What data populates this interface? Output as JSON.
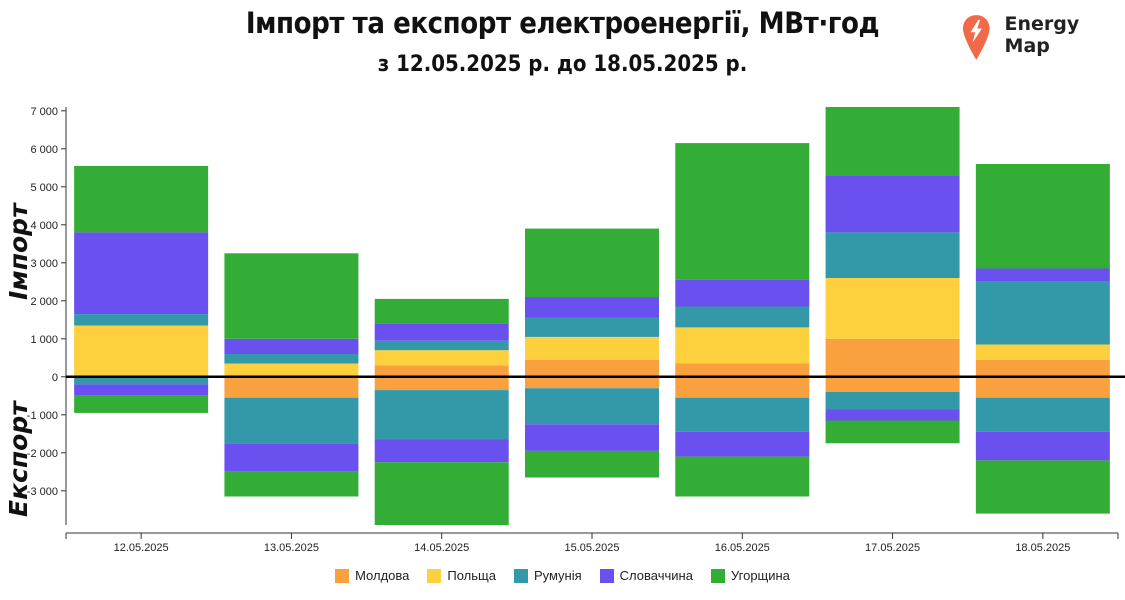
{
  "header": {
    "title": "Імпорт та експорт електроенергії, МВт·год",
    "subtitle": "з 12.05.2025 р. до 18.05.2025 р.",
    "brand_name": "Energy Map",
    "brand_icon": "location-bolt-icon"
  },
  "side_labels": {
    "import": "Імпорт",
    "export": "Експорт"
  },
  "chart_data": {
    "type": "bar",
    "stacked": true,
    "title": "Імпорт та експорт електроенергії, МВт·год",
    "subtitle": "з 12.05.2025 р. до 18.05.2025 р.",
    "categories": [
      "12.05.2025",
      "13.05.2025",
      "14.05.2025",
      "15.05.2025",
      "16.05.2025",
      "17.05.2025",
      "18.05.2025"
    ],
    "ylim": [
      -3900,
      7100
    ],
    "yticks": [
      7000,
      6000,
      5000,
      4000,
      3000,
      2000,
      1000,
      0,
      -1000,
      -2000,
      -3000
    ],
    "ytick_labels": [
      "7 000",
      "6 000",
      "5 000",
      "4 000",
      "3 000",
      "2 000",
      "1 000",
      "0",
      "-1 000",
      "-2 000",
      "-3 000"
    ],
    "legend_position": "bottom",
    "grid": false,
    "series": [
      {
        "name": "Молдова",
        "color": "#f9a03f",
        "import": [
          0,
          0,
          300,
          450,
          350,
          1000,
          450
        ],
        "export": [
          0,
          -550,
          -350,
          -300,
          -550,
          -400,
          -550
        ]
      },
      {
        "name": "Польща",
        "color": "#fdd13d",
        "import": [
          1350,
          350,
          400,
          600,
          950,
          1600,
          400
        ],
        "export": [
          0,
          0,
          0,
          0,
          0,
          0,
          0
        ]
      },
      {
        "name": "Румунія",
        "color": "#3399a9",
        "import": [
          300,
          250,
          250,
          500,
          550,
          1200,
          1650
        ],
        "export": [
          -200,
          -1200,
          -1300,
          -950,
          -900,
          -450,
          -900
        ]
      },
      {
        "name": "Словаччина",
        "color": "#6a51ef",
        "import": [
          2150,
          400,
          450,
          550,
          700,
          1500,
          350
        ],
        "export": [
          -300,
          -750,
          -600,
          -700,
          -650,
          -300,
          -750
        ]
      },
      {
        "name": "Угорщина",
        "color": "#33ad35",
        "import": [
          1750,
          2250,
          650,
          1800,
          3600,
          1800,
          2750
        ],
        "export": [
          -450,
          -650,
          -1800,
          -700,
          -1050,
          -600,
          -1400
        ]
      }
    ]
  }
}
